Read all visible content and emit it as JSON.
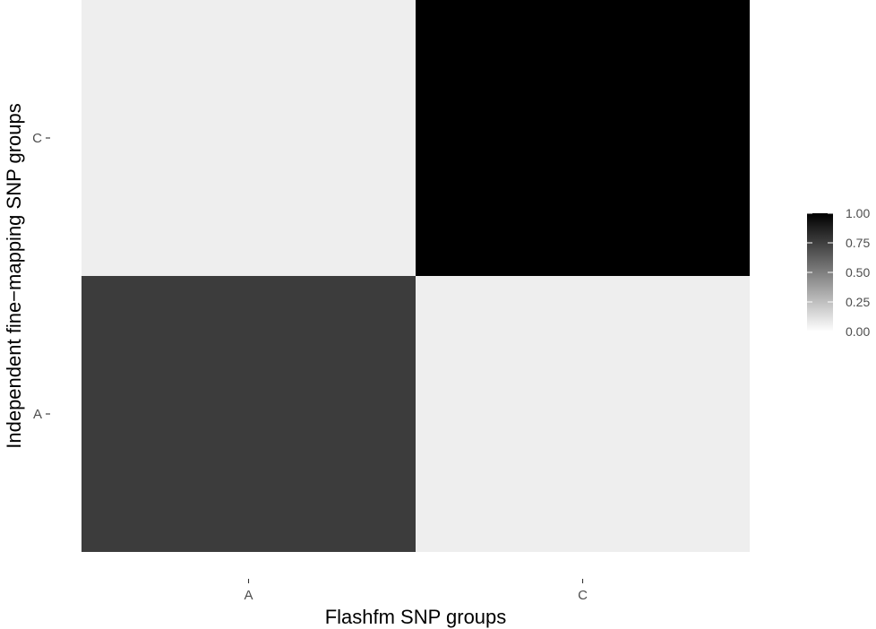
{
  "chart_data": {
    "type": "heatmap",
    "title": "",
    "xlabel": "Flashfm SNP groups",
    "ylabel": "Independent fine−mapping SNP groups",
    "x_categories": [
      "A",
      "C"
    ],
    "y_categories": [
      "A",
      "C"
    ],
    "cells": [
      {
        "x": "A",
        "y": "A",
        "value": 0.75
      },
      {
        "x": "C",
        "y": "A",
        "value": 0.0
      },
      {
        "x": "A",
        "y": "C",
        "value": 0.0
      },
      {
        "x": "C",
        "y": "C",
        "value": 1.0
      }
    ],
    "value_range": [
      0,
      1
    ],
    "color_low": "#eeeeee",
    "color_high": "#000000",
    "legend": {
      "placement": "right",
      "ticks": [
        0.0,
        0.25,
        0.5,
        0.75,
        1.0
      ],
      "tick_labels": [
        "0.00",
        "0.25",
        "0.50",
        "0.75",
        "1.00"
      ]
    },
    "grid": false
  }
}
